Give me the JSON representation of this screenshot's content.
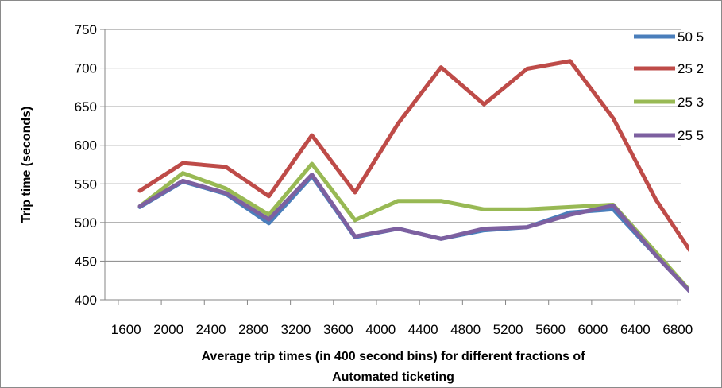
{
  "chart_data": {
    "type": "line",
    "title": "",
    "xlabel_lines": [
      "Average trip times (in 400 second bins) for different fractions  of",
      "Automated ticketing"
    ],
    "ylabel": "Trip time (seconds)",
    "x": [
      1600,
      2000,
      2400,
      2800,
      3200,
      3600,
      4000,
      4400,
      4800,
      5200,
      5600,
      6000,
      6400,
      6800
    ],
    "x_tick_labels": [
      "1600",
      "2000",
      "2400",
      "2800",
      "3200",
      "3600",
      "4000",
      "4400",
      "4800",
      "5200",
      "5600",
      "6000",
      "6400",
      "6800"
    ],
    "y_ticks": [
      400,
      450,
      500,
      550,
      600,
      650,
      700,
      750
    ],
    "y_tick_labels": [
      "400",
      "450",
      "500",
      "550",
      "600",
      "650",
      "700",
      "750"
    ],
    "ylim": [
      400,
      750
    ],
    "grid": "horizontal",
    "legend_position": "top-right",
    "series": [
      {
        "name": "50 5",
        "color": "#4a7ebb",
        "values": [
          520,
          553,
          537,
          499,
          560,
          481,
          492,
          479,
          490,
          494,
          513,
          517,
          457,
          398
        ]
      },
      {
        "name": "25 2",
        "color": "#be4b48",
        "values": [
          541,
          577,
          572,
          534,
          613,
          539,
          628,
          701,
          653,
          699,
          709,
          635,
          529,
          446
        ]
      },
      {
        "name": "25 3",
        "color": "#98b954",
        "values": [
          521,
          564,
          544,
          510,
          576,
          503,
          528,
          528,
          517,
          517,
          520,
          523,
          461,
          398
        ]
      },
      {
        "name": "25 5",
        "color": "#7d60a0",
        "values": [
          521,
          554,
          538,
          504,
          562,
          482,
          492,
          479,
          492,
          494,
          510,
          522,
          457,
          398
        ]
      }
    ]
  }
}
